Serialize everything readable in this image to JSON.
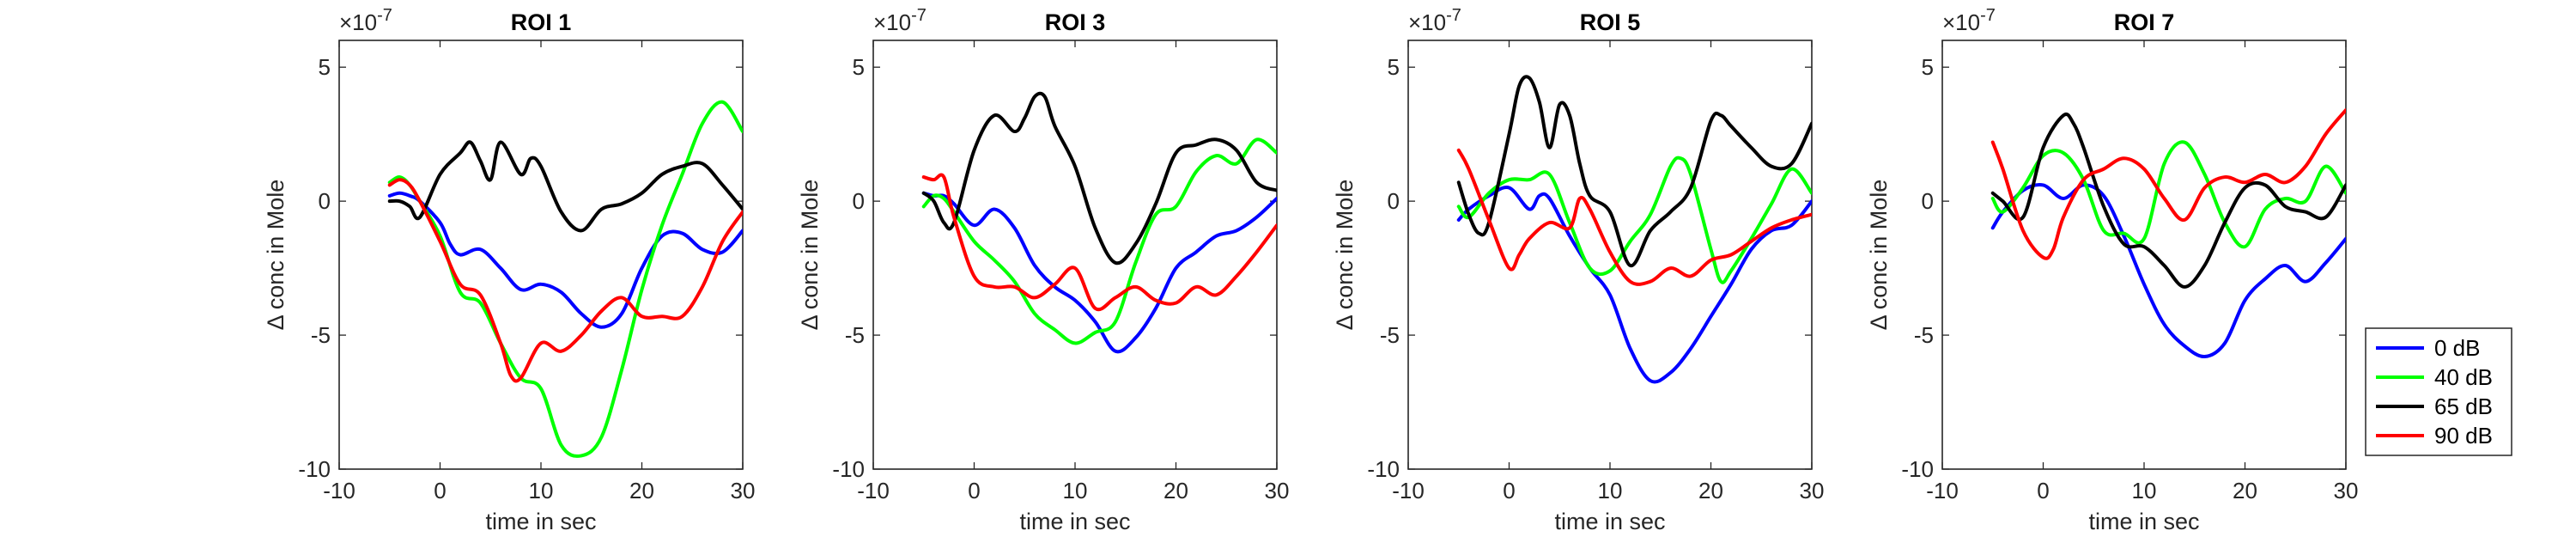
{
  "figure": {
    "legend": {
      "entries": [
        {
          "label": "0 dB",
          "color": "#0000ff"
        },
        {
          "label": "40 dB",
          "color": "#00ff00"
        },
        {
          "label": "65 dB",
          "color": "#000000"
        },
        {
          "label": "90 dB",
          "color": "#ff0000"
        }
      ],
      "placement": "right, outside last panel"
    }
  },
  "chart_data": [
    {
      "type": "line",
      "title": "ROI 1",
      "xlabel": "time in sec",
      "ylabel": "Δ conc in Mole",
      "y_exponent_label": "×10",
      "y_exponent": "-7",
      "xlim": [
        -10,
        30
      ],
      "ylim": [
        -10,
        6
      ],
      "xticks": [
        -10,
        0,
        10,
        20,
        30
      ],
      "yticks": [
        -10,
        -5,
        0,
        5
      ],
      "grid": false,
      "series": [
        {
          "name": "0 dB",
          "color": "#0000ff",
          "x": [
            -5,
            -4,
            -3,
            -2,
            0,
            1,
            2,
            4,
            6,
            8,
            10,
            12,
            14,
            16,
            18,
            20,
            22,
            24,
            26,
            28,
            30
          ],
          "y": [
            0.2,
            0.3,
            0.2,
            0,
            -0.8,
            -1.6,
            -2.0,
            -1.8,
            -2.5,
            -3.3,
            -3.1,
            -3.4,
            -4.2,
            -4.7,
            -4.2,
            -2.5,
            -1.3,
            -1.2,
            -1.8,
            -1.9,
            -1.1
          ]
        },
        {
          "name": "40 dB",
          "color": "#00ff00",
          "x": [
            -5,
            -4,
            -3,
            -2,
            0,
            2,
            4,
            6,
            8,
            10,
            12,
            14,
            16,
            18,
            20,
            22,
            24,
            26,
            28,
            30
          ],
          "y": [
            0.7,
            0.9,
            0.6,
            0,
            -1.3,
            -3.4,
            -3.8,
            -5.3,
            -6.6,
            -7.0,
            -9.1,
            -9.5,
            -8.8,
            -6.3,
            -3.3,
            -0.9,
            1.0,
            2.9,
            3.7,
            2.6
          ]
        },
        {
          "name": "65 dB",
          "color": "#000000",
          "x": [
            -5,
            -4,
            -3,
            -2,
            0,
            2,
            3,
            4,
            5,
            6,
            8,
            9,
            10,
            12,
            14,
            16,
            18,
            20,
            22,
            24,
            26,
            28,
            30
          ],
          "y": [
            0,
            0,
            -0.2,
            -0.6,
            1.0,
            1.8,
            2.2,
            1.5,
            0.8,
            2.2,
            1.0,
            1.6,
            1.3,
            -0.4,
            -1.1,
            -0.3,
            -0.1,
            0.3,
            1.0,
            1.3,
            1.4,
            0.6,
            -0.3
          ]
        },
        {
          "name": "90 dB",
          "color": "#ff0000",
          "x": [
            -5,
            -4,
            -3,
            -2,
            0,
            2,
            4,
            6,
            7,
            8,
            10,
            12,
            14,
            16,
            18,
            20,
            22,
            24,
            26,
            28,
            30
          ],
          "y": [
            0.6,
            0.8,
            0.6,
            0,
            -1.5,
            -3.1,
            -3.5,
            -5.3,
            -6.5,
            -6.6,
            -5.3,
            -5.6,
            -5.0,
            -4.1,
            -3.6,
            -4.3,
            -4.3,
            -4.3,
            -3.2,
            -1.5,
            -0.4
          ]
        }
      ]
    },
    {
      "type": "line",
      "title": "ROI 3",
      "xlabel": "time in sec",
      "ylabel": "Δ conc in Mole",
      "y_exponent_label": "×10",
      "y_exponent": "-7",
      "xlim": [
        -10,
        30
      ],
      "ylim": [
        -10,
        6
      ],
      "xticks": [
        -10,
        0,
        10,
        20,
        30
      ],
      "yticks": [
        -10,
        -5,
        0,
        5
      ],
      "grid": false,
      "series": [
        {
          "name": "0 dB",
          "color": "#0000ff",
          "x": [
            -5,
            -4,
            -3,
            -2,
            0,
            2,
            4,
            6,
            8,
            10,
            12,
            14,
            16,
            18,
            20,
            22,
            24,
            26,
            28,
            30
          ],
          "y": [
            0.3,
            0.2,
            0.2,
            -0.1,
            -0.9,
            -0.3,
            -1.0,
            -2.4,
            -3.2,
            -3.7,
            -4.5,
            -5.6,
            -5.1,
            -4.0,
            -2.5,
            -1.9,
            -1.3,
            -1.1,
            -0.6,
            0.1
          ]
        },
        {
          "name": "40 dB",
          "color": "#00ff00",
          "x": [
            -5,
            -4,
            -3,
            -2,
            0,
            2,
            4,
            6,
            8,
            10,
            12,
            14,
            16,
            18,
            20,
            22,
            24,
            26,
            28,
            30
          ],
          "y": [
            -0.2,
            0.2,
            0.1,
            -0.4,
            -1.5,
            -2.2,
            -3.0,
            -4.2,
            -4.8,
            -5.3,
            -4.9,
            -4.5,
            -2.3,
            -0.5,
            -0.2,
            1.1,
            1.7,
            1.4,
            2.3,
            1.8
          ]
        },
        {
          "name": "65 dB",
          "color": "#000000",
          "x": [
            -5,
            -4,
            -3,
            -2,
            0,
            2,
            4,
            5,
            6,
            7,
            8,
            10,
            12,
            14,
            16,
            18,
            20,
            22,
            24,
            26,
            28,
            30
          ],
          "y": [
            0.3,
            0,
            -0.8,
            -0.8,
            1.9,
            3.2,
            2.6,
            3.1,
            3.9,
            3.9,
            2.8,
            1.3,
            -1.0,
            -2.3,
            -1.6,
            -0.1,
            1.8,
            2.1,
            2.3,
            1.9,
            0.7,
            0.4
          ]
        },
        {
          "name": "90 dB",
          "color": "#ff0000",
          "x": [
            -5,
            -4,
            -3,
            -2,
            0,
            2,
            4,
            6,
            8,
            10,
            12,
            14,
            16,
            18,
            20,
            22,
            24,
            26,
            28,
            30
          ],
          "y": [
            0.9,
            0.8,
            0.9,
            -0.6,
            -2.8,
            -3.2,
            -3.2,
            -3.6,
            -3.1,
            -2.5,
            -4.0,
            -3.6,
            -3.2,
            -3.7,
            -3.8,
            -3.2,
            -3.5,
            -2.8,
            -1.9,
            -0.9
          ]
        }
      ]
    },
    {
      "type": "line",
      "title": "ROI 5",
      "xlabel": "time in sec",
      "ylabel": "Δ conc in Mole",
      "y_exponent_label": "×10",
      "y_exponent": "-7",
      "xlim": [
        -10,
        30
      ],
      "ylim": [
        -10,
        6
      ],
      "xticks": [
        -10,
        0,
        10,
        20,
        30
      ],
      "yticks": [
        -10,
        -5,
        0,
        5
      ],
      "grid": false,
      "series": [
        {
          "name": "0 dB",
          "color": "#0000ff",
          "x": [
            -5,
            -4,
            -2,
            0,
            2,
            3,
            4,
            6,
            8,
            10,
            12,
            14,
            16,
            18,
            20,
            22,
            24,
            26,
            28,
            30
          ],
          "y": [
            -0.7,
            -0.3,
            0.2,
            0.5,
            -0.3,
            0.2,
            0.1,
            -1.3,
            -2.5,
            -3.5,
            -5.5,
            -6.7,
            -6.4,
            -5.5,
            -4.3,
            -3.1,
            -1.8,
            -1.1,
            -0.9,
            0.0
          ]
        },
        {
          "name": "40 dB",
          "color": "#00ff00",
          "x": [
            -5,
            -4,
            -2,
            0,
            2,
            4,
            6,
            8,
            10,
            12,
            14,
            16,
            17,
            18,
            20,
            21,
            22,
            24,
            26,
            28,
            30
          ],
          "y": [
            -0.2,
            -0.6,
            0.3,
            0.8,
            0.8,
            1.0,
            -0.8,
            -2.5,
            -2.6,
            -1.5,
            -0.5,
            1.3,
            1.6,
            1.0,
            -1.8,
            -3.0,
            -2.6,
            -1.4,
            -0.1,
            1.2,
            0.3
          ]
        },
        {
          "name": "65 dB",
          "color": "#000000",
          "x": [
            -5,
            -4,
            -3,
            -2,
            0,
            1,
            2,
            3,
            4,
            5,
            6,
            7,
            8,
            10,
            12,
            14,
            16,
            18,
            20,
            21,
            22,
            24,
            26,
            28,
            30
          ],
          "y": [
            0.7,
            -0.5,
            -1.2,
            -0.8,
            2.5,
            4.3,
            4.6,
            3.7,
            2.0,
            3.6,
            3.2,
            1.4,
            0.2,
            -0.4,
            -2.4,
            -1.1,
            -0.4,
            0.5,
            3.0,
            3.2,
            2.8,
            2.0,
            1.3,
            1.4,
            2.9
          ]
        },
        {
          "name": "90 dB",
          "color": "#ff0000",
          "x": [
            -5,
            -4,
            -2,
            0,
            1,
            2,
            4,
            6,
            7,
            8,
            10,
            12,
            14,
            16,
            18,
            20,
            22,
            24,
            26,
            28,
            30
          ],
          "y": [
            1.9,
            1.2,
            -0.7,
            -2.5,
            -2.0,
            -1.4,
            -0.8,
            -1.0,
            0.1,
            -0.3,
            -1.9,
            -3.0,
            -3.0,
            -2.5,
            -2.8,
            -2.2,
            -2.0,
            -1.5,
            -1.0,
            -0.7,
            -0.5
          ]
        }
      ]
    },
    {
      "type": "line",
      "title": "ROI 7",
      "xlabel": "time in sec",
      "ylabel": "Δ conc in Mole",
      "y_exponent_label": "×10",
      "y_exponent": "-7",
      "xlim": [
        -10,
        30
      ],
      "ylim": [
        -10,
        6
      ],
      "xticks": [
        -10,
        0,
        10,
        20,
        30
      ],
      "yticks": [
        -10,
        -5,
        0,
        5
      ],
      "grid": false,
      "series": [
        {
          "name": "0 dB",
          "color": "#0000ff",
          "x": [
            -5,
            -4,
            -2,
            0,
            2,
            4,
            6,
            8,
            10,
            12,
            14,
            16,
            18,
            20,
            22,
            24,
            26,
            28,
            30
          ],
          "y": [
            -1.0,
            -0.4,
            0.4,
            0.6,
            0.1,
            0.6,
            0.2,
            -1.3,
            -3.1,
            -4.6,
            -5.4,
            -5.8,
            -5.3,
            -3.7,
            -2.9,
            -2.4,
            -3.0,
            -2.3,
            -1.4
          ]
        },
        {
          "name": "40 dB",
          "color": "#00ff00",
          "x": [
            -5,
            -4,
            -2,
            0,
            2,
            4,
            6,
            8,
            10,
            12,
            14,
            16,
            18,
            20,
            22,
            24,
            26,
            28,
            30
          ],
          "y": [
            0.1,
            -0.4,
            0.5,
            1.7,
            1.8,
            0.8,
            -1.1,
            -1.2,
            -1.4,
            1.4,
            2.2,
            1.0,
            -0.8,
            -1.7,
            -0.3,
            0.1,
            0.0,
            1.3,
            0.3
          ]
        },
        {
          "name": "65 dB",
          "color": "#000000",
          "x": [
            -5,
            -4,
            -2,
            0,
            2,
            3,
            4,
            6,
            8,
            10,
            12,
            14,
            16,
            18,
            20,
            22,
            24,
            26,
            28,
            30
          ],
          "y": [
            0.3,
            0.0,
            -0.6,
            2.0,
            3.2,
            2.9,
            2.0,
            -0.2,
            -1.6,
            -1.7,
            -2.4,
            -3.2,
            -2.4,
            -0.8,
            0.5,
            0.6,
            -0.2,
            -0.4,
            -0.6,
            0.6
          ]
        },
        {
          "name": "90 dB",
          "color": "#ff0000",
          "x": [
            -5,
            -4,
            -2,
            0,
            1,
            2,
            4,
            6,
            8,
            10,
            12,
            14,
            16,
            18,
            20,
            22,
            24,
            26,
            28,
            30
          ],
          "y": [
            2.2,
            1.2,
            -1.1,
            -2.1,
            -1.8,
            -0.6,
            0.8,
            1.2,
            1.6,
            1.2,
            0.1,
            -0.7,
            0.5,
            0.9,
            0.7,
            1.0,
            0.7,
            1.3,
            2.5,
            3.4
          ]
        }
      ]
    }
  ]
}
